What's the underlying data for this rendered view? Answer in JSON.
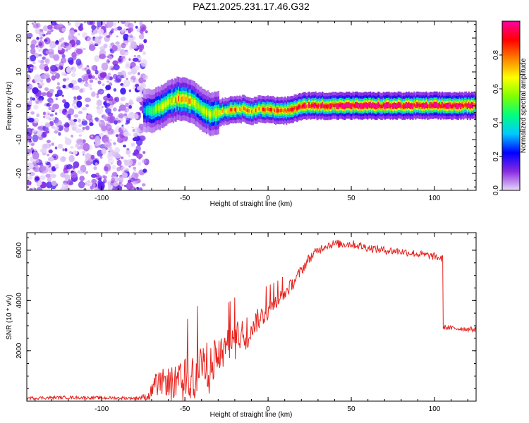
{
  "title": "PAZ1.2025.231.17.46.G32",
  "chart_data": [
    {
      "type": "heatmap",
      "name": "spectrogram",
      "xlabel": "Height of straight line (km)",
      "ylabel": "Frequency (Hz)",
      "xlim": [
        -145,
        125
      ],
      "ylim": [
        -25,
        25
      ],
      "xticks": [
        -100,
        -50,
        0,
        50,
        100
      ],
      "yticks": [
        -20,
        -10,
        0,
        10,
        20
      ],
      "colorbar": {
        "label": "Normalized spectral amplitude",
        "range": [
          0,
          1
        ],
        "ticks": [
          "0.0",
          "0.2",
          "0.4",
          "0.6",
          "0.8"
        ],
        "tick_values": [
          0.0,
          0.2,
          0.4,
          0.6,
          0.8
        ],
        "colors": [
          "#e8d8f8",
          "#8a2be2",
          "#0000ff",
          "#00c8ff",
          "#00ff80",
          "#80ff00",
          "#ffff00",
          "#ff8000",
          "#ff0000",
          "#ff00a0"
        ]
      },
      "noise_region_x": [
        -145,
        -73
      ],
      "ridge": {
        "x": [
          -75,
          -70,
          -65,
          -60,
          -55,
          -50,
          -45,
          -40,
          -35,
          -30,
          -25,
          -20,
          -15,
          -10,
          -5,
          0,
          5,
          10,
          15,
          20,
          30,
          40,
          50,
          60,
          70,
          80,
          90,
          100,
          110,
          125
        ],
        "freq": [
          -1.5,
          -1.5,
          -0.5,
          1,
          2,
          2,
          1,
          -1,
          -2.5,
          -2,
          -1.5,
          -1,
          -1,
          -1.5,
          -1,
          -1,
          -1.5,
          -1.5,
          -1,
          0,
          0,
          0,
          0,
          0,
          0,
          0,
          0,
          0,
          0,
          0
        ],
        "amplitude": [
          0.3,
          0.45,
          0.55,
          0.6,
          0.65,
          0.65,
          0.6,
          0.5,
          0.55,
          0.6,
          0.65,
          0.7,
          0.7,
          0.7,
          0.7,
          0.7,
          0.75,
          0.75,
          0.8,
          0.8,
          0.85,
          0.9,
          0.9,
          0.9,
          0.9,
          0.9,
          0.85,
          0.9,
          0.9,
          0.85
        ]
      }
    },
    {
      "type": "line",
      "name": "snr",
      "xlabel": "Height of straight line (km)",
      "ylabel": "SNR (10 * v/v)",
      "xlim": [
        -145,
        125
      ],
      "ylim": [
        0,
        6700
      ],
      "xticks": [
        -100,
        -50,
        0,
        50,
        100
      ],
      "yticks": [
        2000,
        4000,
        6000
      ],
      "color": "#e8221c",
      "series": [
        {
          "name": "SNR",
          "x": [
            -145,
            -120,
            -100,
            -80,
            -72,
            -68,
            -62,
            -55,
            -50,
            -45,
            -40,
            -35,
            -30,
            -25,
            -20,
            -15,
            -10,
            -5,
            0,
            5,
            10,
            15,
            20,
            25,
            30,
            35,
            40,
            50,
            60,
            70,
            80,
            90,
            100,
            105,
            105.5,
            110,
            125
          ],
          "y": [
            120,
            150,
            130,
            120,
            180,
            600,
            800,
            700,
            800,
            1000,
            1300,
            1500,
            1800,
            2100,
            2500,
            2700,
            3000,
            3300,
            3600,
            4000,
            4300,
            4700,
            5200,
            5700,
            6000,
            6200,
            6250,
            6250,
            6100,
            6000,
            5950,
            5850,
            5750,
            5650,
            2950,
            2900,
            2850
          ],
          "noise": [
            60,
            60,
            60,
            60,
            150,
            450,
            550,
            700,
            900,
            1100,
            1000,
            900,
            800,
            700,
            650,
            600,
            500,
            450,
            400,
            300,
            280,
            250,
            220,
            200,
            180,
            170,
            170,
            170,
            160,
            160,
            150,
            150,
            150,
            150,
            100,
            100,
            100
          ]
        }
      ]
    }
  ]
}
